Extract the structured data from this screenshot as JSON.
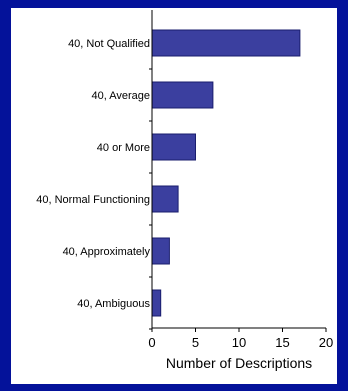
{
  "colors": {
    "background": "#04129a",
    "panel": "#ffffff",
    "bar_fill": "#3b3f9f",
    "bar_stroke": "#1a1e6e",
    "axis": "#000000",
    "text": "#000000"
  },
  "chart_data": {
    "type": "bar",
    "orientation": "horizontal",
    "categories": [
      "40, Not Qualified",
      "40, Average",
      "40 or More",
      "40, Normal Functioning",
      "40, Approximately",
      "40, Ambiguous"
    ],
    "values": [
      17,
      7,
      5,
      3,
      2,
      1
    ],
    "title": "",
    "xlabel": "Number of Descriptions",
    "ylabel": "",
    "xlim": [
      0,
      20
    ],
    "xticks": [
      "0",
      "5",
      "10",
      "15",
      "20"
    ],
    "grid": false,
    "legend": "none"
  }
}
